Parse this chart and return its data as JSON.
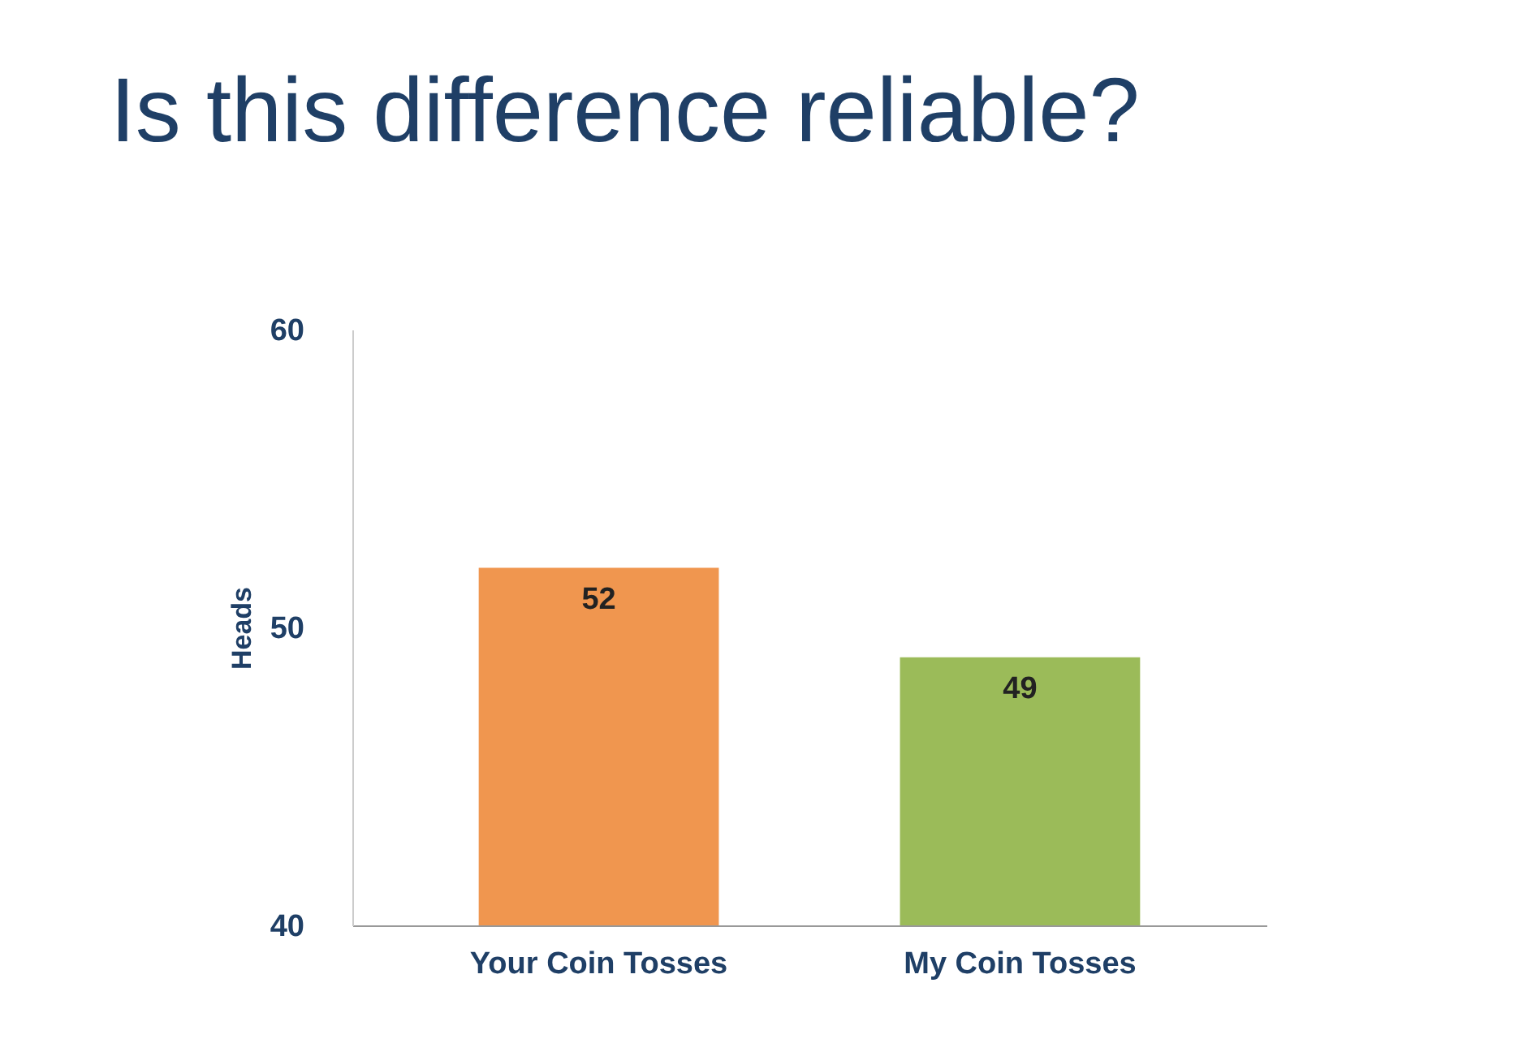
{
  "chart_data": {
    "type": "bar",
    "title": "Is this difference reliable?",
    "ylabel": "Heads",
    "categories": [
      "Your Coin Tosses",
      "My Coin Tosses"
    ],
    "values": [
      52,
      49
    ],
    "colors": [
      "#f0964f",
      "#9bbb59"
    ],
    "ylim": [
      40,
      60
    ],
    "yticks": [
      40,
      50,
      60
    ],
    "grid": false,
    "data_labels": true
  }
}
